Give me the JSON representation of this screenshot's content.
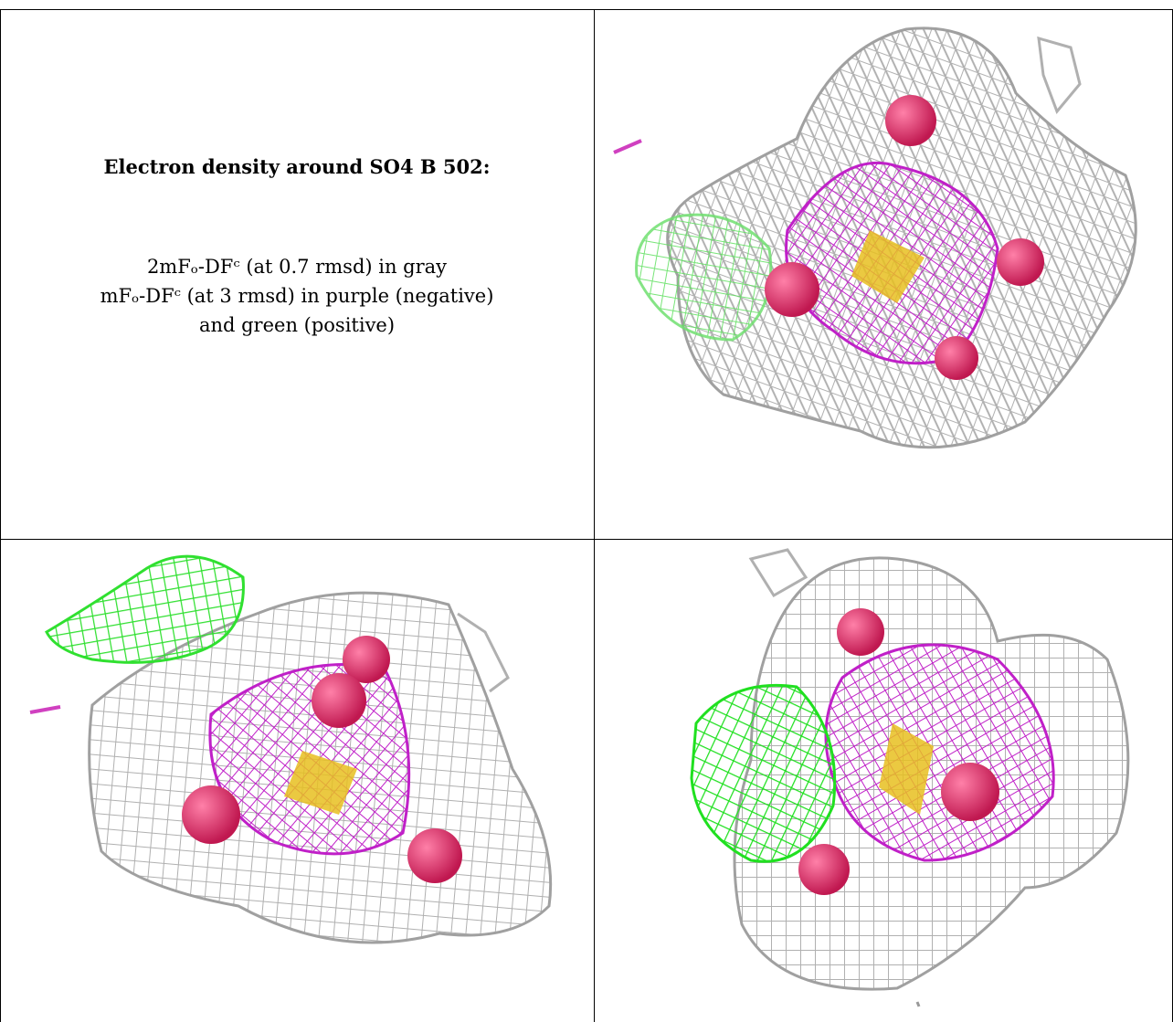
{
  "caption": {
    "title": "Electron density around SO4 B 502:",
    "line1": "2mFₒ-DFᶜ (at 0.7 rmsd) in gray",
    "line2": "mFₒ-DFᶜ (at 3 rmsd) in purple (negative)",
    "line3": "and green (positive)"
  },
  "colors": {
    "gray_mesh": "#b8b8b8",
    "purple_mesh": "#c020c8",
    "green_mesh": "#40e040",
    "oxygen": "#e0306a",
    "sulfur": "#e8c020"
  },
  "panels": [
    {
      "view": "view-1"
    },
    {
      "view": "view-2"
    },
    {
      "view": "view-3"
    }
  ]
}
